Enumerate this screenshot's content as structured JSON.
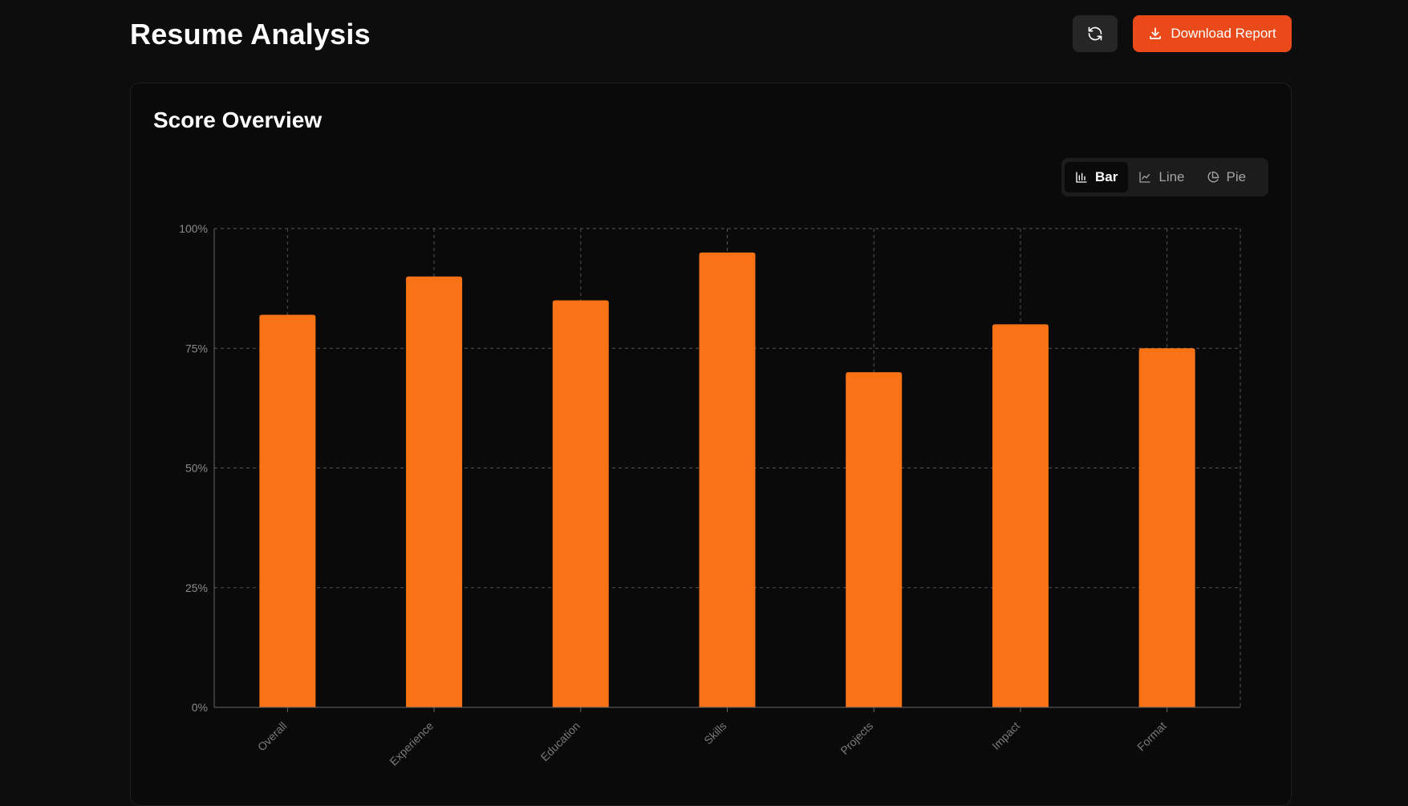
{
  "header": {
    "title": "Resume Analysis",
    "refresh_icon": "refresh-icon",
    "download_icon": "download-icon",
    "download_label": "Download Report"
  },
  "card": {
    "title": "Score Overview"
  },
  "chart_toggle": {
    "selected": "Bar",
    "options": [
      {
        "label": "Bar",
        "icon": "bar-chart-icon"
      },
      {
        "label": "Line",
        "icon": "line-chart-icon"
      },
      {
        "label": "Pie",
        "icon": "pie-chart-icon"
      }
    ]
  },
  "colors": {
    "accent": "#ea4a1a",
    "bar": "#f97316",
    "background": "#0d0d0d",
    "card": "#0a0a0a"
  },
  "chart_data": {
    "type": "bar",
    "categories": [
      "Overall",
      "Experience",
      "Education",
      "Skills",
      "Projects",
      "Impact",
      "Format"
    ],
    "values": [
      82,
      90,
      85,
      95,
      70,
      80,
      75
    ],
    "ylim": [
      0,
      100
    ],
    "yticks": [
      "0%",
      "25%",
      "50%",
      "75%",
      "100%"
    ],
    "ytick_values": [
      0,
      25,
      50,
      75,
      100
    ],
    "grid": true,
    "legend": "none"
  }
}
